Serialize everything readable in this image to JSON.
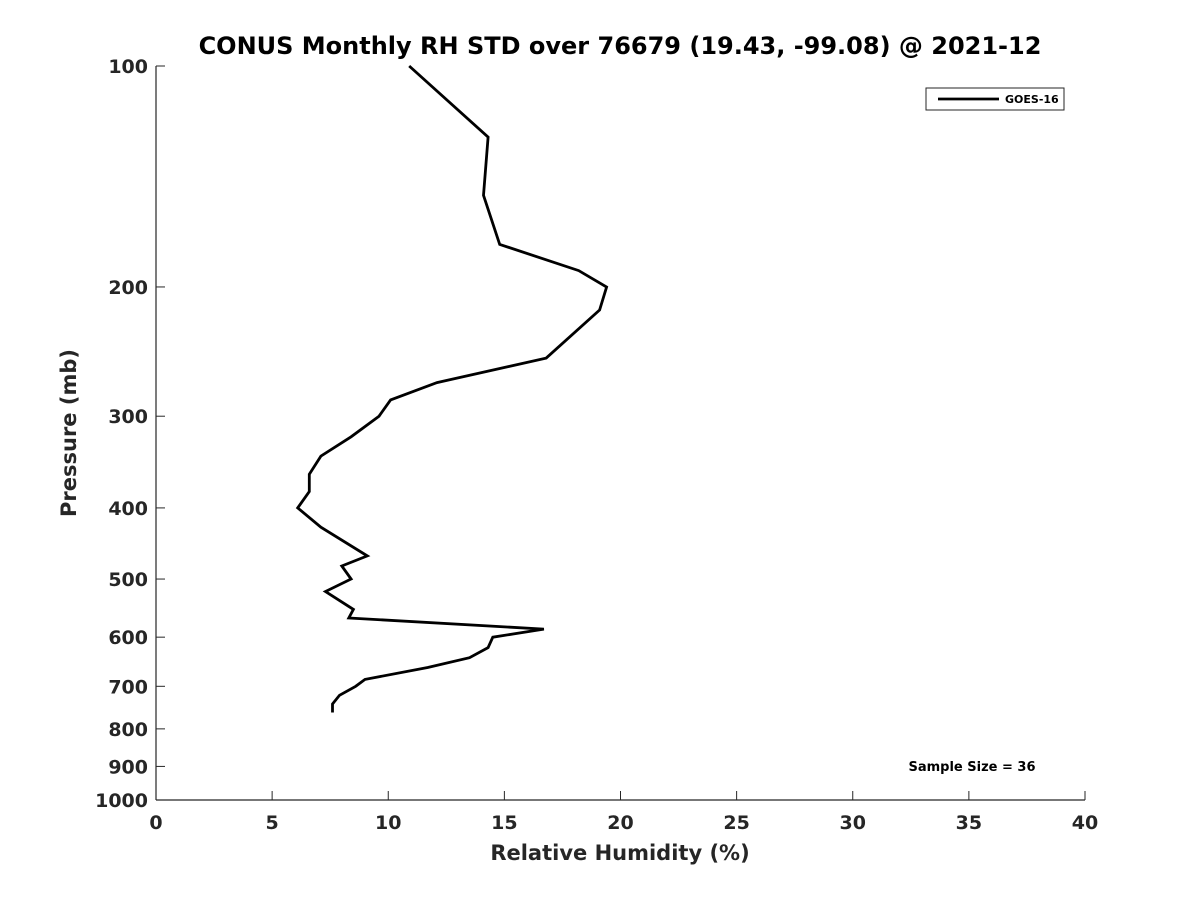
{
  "chart_data": {
    "type": "line",
    "title": "CONUS Monthly RH STD over 76679 (19.43, -99.08) @ 2021-12",
    "xlabel": "Relative Humidity (%)",
    "ylabel": "Pressure (mb)",
    "xlim": [
      0,
      40
    ],
    "ylim": [
      100,
      1000
    ],
    "yscale": "log",
    "yreversed": true,
    "grid": false,
    "x_ticks": [
      "0",
      "5",
      "10",
      "15",
      "20",
      "25",
      "30",
      "35",
      "40"
    ],
    "y_ticks": [
      "100",
      "200",
      "300",
      "400",
      "500",
      "600",
      "700",
      "800",
      "900",
      "1000"
    ],
    "legend_position": "top-right",
    "annotation": "Sample Size = 36",
    "series": [
      {
        "name": "GOES-16",
        "color": "#000000",
        "points": [
          {
            "x": 10.9,
            "p": 100
          },
          {
            "x": 14.3,
            "p": 125
          },
          {
            "x": 14.1,
            "p": 150
          },
          {
            "x": 14.8,
            "p": 175
          },
          {
            "x": 18.2,
            "p": 190
          },
          {
            "x": 19.4,
            "p": 200
          },
          {
            "x": 19.1,
            "p": 215
          },
          {
            "x": 16.8,
            "p": 250
          },
          {
            "x": 12.1,
            "p": 270
          },
          {
            "x": 10.1,
            "p": 285
          },
          {
            "x": 9.6,
            "p": 300
          },
          {
            "x": 8.4,
            "p": 320
          },
          {
            "x": 7.1,
            "p": 340
          },
          {
            "x": 6.6,
            "p": 360
          },
          {
            "x": 6.6,
            "p": 380
          },
          {
            "x": 6.1,
            "p": 400
          },
          {
            "x": 7.1,
            "p": 425
          },
          {
            "x": 9.1,
            "p": 465
          },
          {
            "x": 8.0,
            "p": 480
          },
          {
            "x": 8.4,
            "p": 500
          },
          {
            "x": 7.3,
            "p": 520
          },
          {
            "x": 8.5,
            "p": 550
          },
          {
            "x": 8.3,
            "p": 565
          },
          {
            "x": 16.7,
            "p": 585
          },
          {
            "x": 14.5,
            "p": 600
          },
          {
            "x": 14.3,
            "p": 620
          },
          {
            "x": 13.5,
            "p": 640
          },
          {
            "x": 11.7,
            "p": 660
          },
          {
            "x": 9.0,
            "p": 685
          },
          {
            "x": 8.6,
            "p": 700
          },
          {
            "x": 7.9,
            "p": 720
          },
          {
            "x": 7.6,
            "p": 740
          },
          {
            "x": 7.6,
            "p": 760
          }
        ]
      }
    ]
  }
}
